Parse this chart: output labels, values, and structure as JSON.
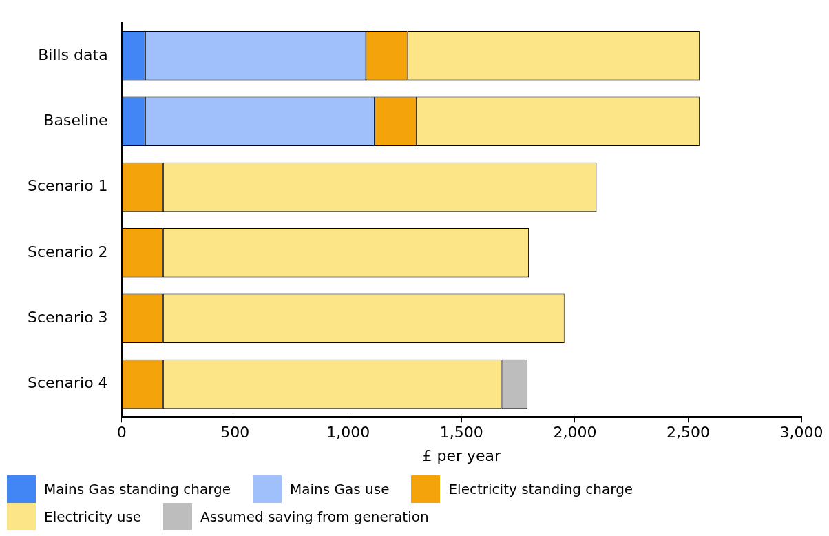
{
  "chart_data": {
    "type": "bar",
    "orientation": "horizontal",
    "stacked": true,
    "xlabel": "£ per year",
    "categories": [
      "Bills data",
      "Baseline",
      "Scenario 1",
      "Scenario 2",
      "Scenario 3",
      "Scenario 4"
    ],
    "series": [
      {
        "name": "Mains Gas standing charge",
        "color": "#4285f4",
        "values": [
          104,
          104,
          null,
          null,
          null,
          null
        ]
      },
      {
        "name": "Mains Gas use",
        "color": "#a0c0fb",
        "values": [
          974,
          1012,
          null,
          null,
          null,
          null
        ]
      },
      {
        "name": "Electricity standing charge",
        "color": "#f4a40a",
        "values": [
          183,
          186,
          183,
          183,
          183,
          183
        ]
      },
      {
        "name": "Electricity use",
        "color": "#fce586",
        "values": [
          1289,
          1248,
          1913,
          1614,
          1771,
          1494
        ]
      },
      {
        "name": "Assumed saving from generation",
        "color": "#bdbdbd",
        "values": [
          null,
          null,
          null,
          null,
          null,
          113
        ]
      }
    ],
    "xlim": [
      0,
      3000
    ],
    "xticks": [
      0,
      500,
      {
        "value": 1000,
        "label": "1,000"
      },
      {
        "value": 1500,
        "label": "1,500"
      },
      {
        "value": 2000,
        "label": "2,000"
      },
      {
        "value": 2500,
        "label": "2,500"
      },
      {
        "value": 3000,
        "label": "3,000"
      }
    ],
    "grid": false,
    "legend": "bottom"
  }
}
